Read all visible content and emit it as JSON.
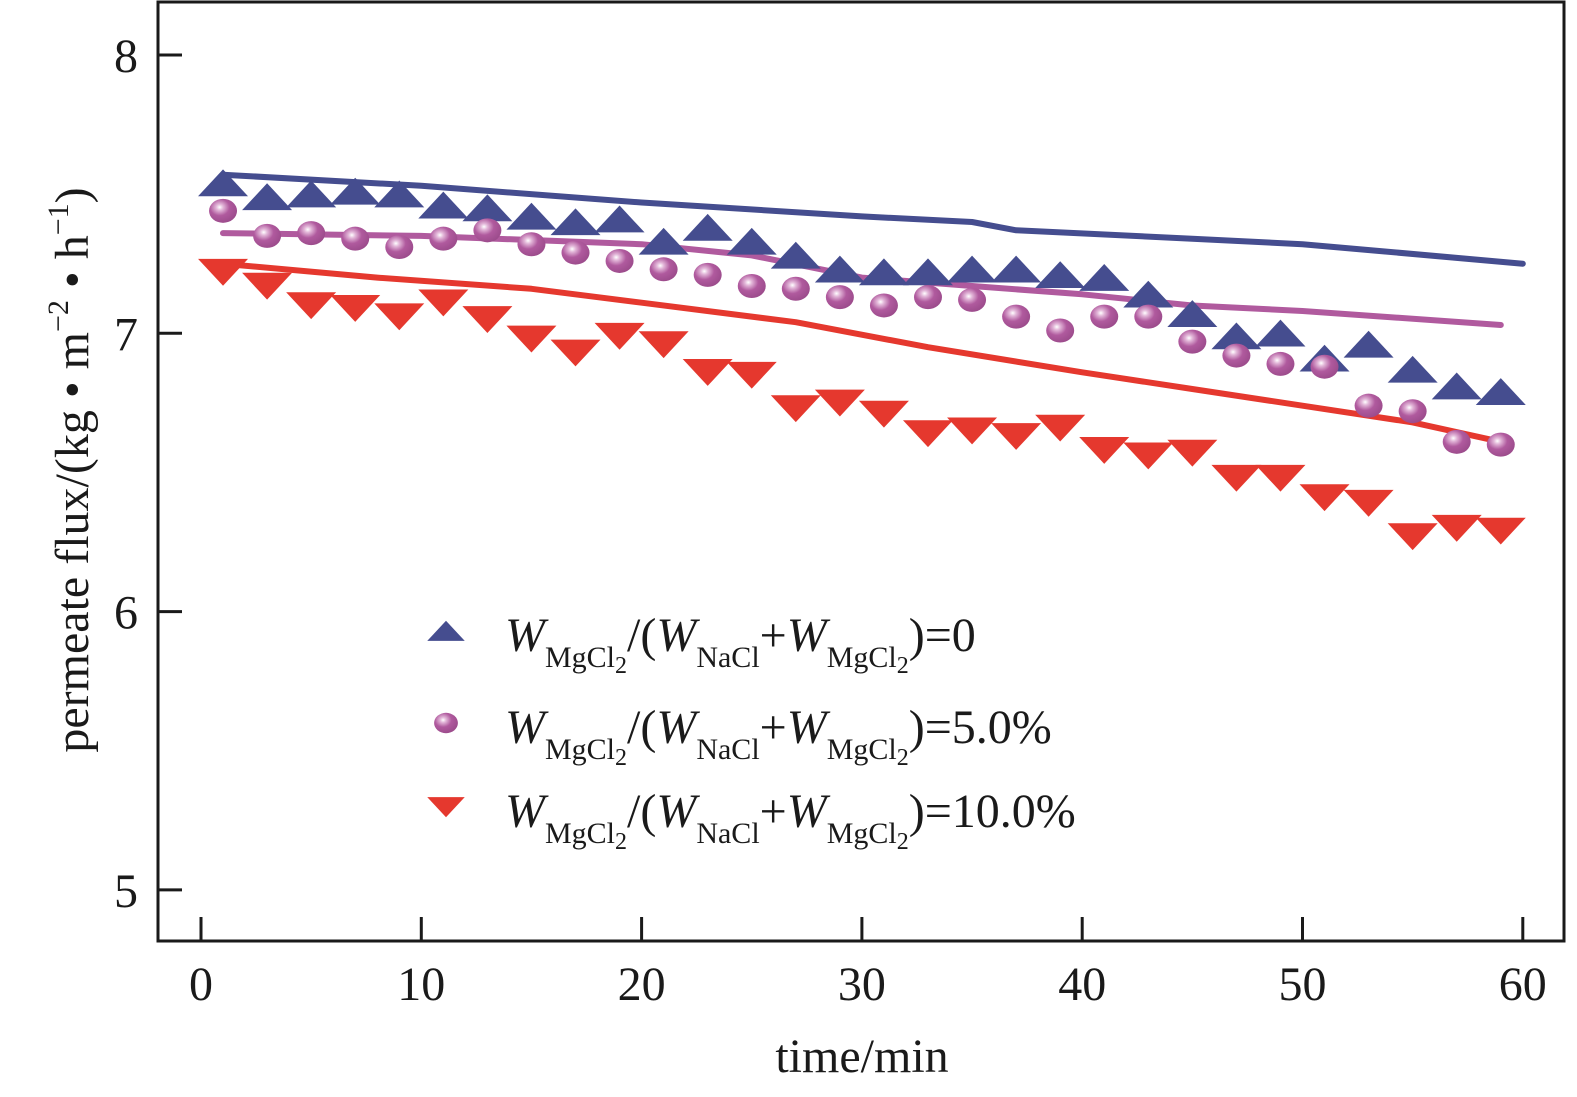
{
  "chart_data": {
    "type": "scatter",
    "title": "",
    "xlabel": "time/min",
    "ylabel": "permeate flux/(kg • m⁻² • h⁻¹)",
    "ylabel_parts": {
      "base": "permeate flux/(kg • m",
      "exp1": "−2",
      "mid": " • h",
      "exp2": "−1",
      "end": ")"
    },
    "xlim": [
      -2,
      62
    ],
    "ylim": [
      4.8,
      8.2
    ],
    "xticks": [
      0,
      10,
      20,
      30,
      40,
      50,
      60
    ],
    "yticks": [
      5,
      6,
      7,
      8
    ],
    "xtick_labels": [
      "0",
      "10",
      "20",
      "30",
      "40",
      "50",
      "60"
    ],
    "ytick_labels": [
      "5",
      "6",
      "7",
      "8"
    ],
    "grid": false,
    "legend_position": "bottom-center",
    "x": [
      1,
      3,
      5,
      7,
      9,
      11,
      13,
      15,
      17,
      19,
      21,
      23,
      25,
      27,
      29,
      31,
      33,
      35,
      37,
      39,
      41,
      43,
      45,
      47,
      49,
      51,
      53,
      55,
      57,
      59
    ],
    "series": [
      {
        "name": "W_MgCl2/(W_NaCl+W_MgCl2)=0",
        "legend": {
          "w1": "W",
          "s1": "MgCl",
          "s1n": "2",
          "mid": "/(",
          "w2": "W",
          "s2": "NaCl",
          "plus": "+",
          "w3": "W",
          "s3": "MgCl",
          "s3n": "2",
          "end": ")=0"
        },
        "marker": "triangle-up",
        "color": "#454d8f",
        "values": [
          7.54,
          7.49,
          7.5,
          7.51,
          7.5,
          7.46,
          7.45,
          7.42,
          7.4,
          7.41,
          7.33,
          7.38,
          7.33,
          7.28,
          7.23,
          7.22,
          7.22,
          7.23,
          7.23,
          7.21,
          7.2,
          7.14,
          7.07,
          6.99,
          7.0,
          6.91,
          6.96,
          6.87,
          6.81,
          6.79
        ],
        "fit_line": {
          "x": [
            1,
            10,
            20,
            30,
            35,
            37,
            45,
            50,
            60
          ],
          "y": [
            7.57,
            7.53,
            7.47,
            7.42,
            7.4,
            7.37,
            7.34,
            7.32,
            7.25
          ]
        }
      },
      {
        "name": "W_MgCl2/(W_NaCl+W_MgCl2)=5.0%",
        "legend": {
          "w1": "W",
          "s1": "MgCl",
          "s1n": "2",
          "mid": "/(",
          "w2": "W",
          "s2": "NaCl",
          "plus": "+",
          "w3": "W",
          "s3": "MgCl",
          "s3n": "2",
          "end": ")=5.0%"
        },
        "marker": "sphere",
        "color": "#b05a9e",
        "values": [
          7.44,
          7.35,
          7.36,
          7.34,
          7.31,
          7.34,
          7.37,
          7.32,
          7.29,
          7.26,
          7.23,
          7.21,
          7.17,
          7.16,
          7.13,
          7.1,
          7.13,
          7.12,
          7.06,
          7.01,
          7.06,
          7.06,
          6.97,
          6.92,
          6.89,
          6.88,
          6.74,
          6.72,
          6.61,
          6.6
        ],
        "fit_line": {
          "x": [
            1,
            10,
            20,
            25,
            30,
            35,
            40,
            45,
            50,
            59
          ],
          "y": [
            7.36,
            7.35,
            7.32,
            7.28,
            7.2,
            7.17,
            7.14,
            7.1,
            7.08,
            7.03
          ]
        }
      },
      {
        "name": "W_MgCl2/(W_NaCl+W_MgCl2)=10.0%",
        "legend": {
          "w1": "W",
          "s1": "MgCl",
          "s1n": "2",
          "mid": "/(",
          "w2": "W",
          "s2": "NaCl",
          "plus": "+",
          "w3": "W",
          "s3": "MgCl",
          "s3n": "2",
          "end": ")=10.0%"
        },
        "marker": "triangle-down",
        "color": "#e5382e",
        "values": [
          7.22,
          7.17,
          7.1,
          7.09,
          7.06,
          7.11,
          7.05,
          6.98,
          6.93,
          6.99,
          6.96,
          6.86,
          6.85,
          6.73,
          6.75,
          6.71,
          6.64,
          6.65,
          6.63,
          6.66,
          6.58,
          6.56,
          6.57,
          6.48,
          6.48,
          6.41,
          6.39,
          6.27,
          6.3,
          6.29
        ],
        "fit_line": {
          "x": [
            1,
            8,
            15,
            20,
            27,
            33,
            40,
            45,
            50,
            55,
            59
          ],
          "y": [
            7.25,
            7.2,
            7.16,
            7.11,
            7.04,
            6.95,
            6.86,
            6.8,
            6.74,
            6.68,
            6.61
          ]
        }
      }
    ]
  }
}
